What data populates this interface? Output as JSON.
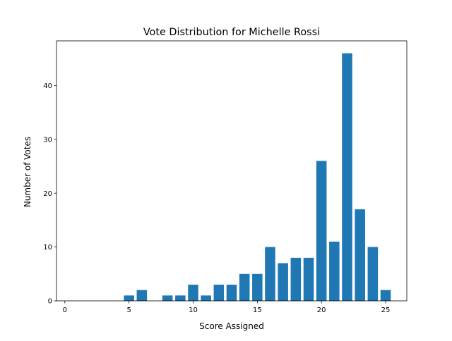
{
  "chart_data": {
    "type": "bar",
    "title": "Vote Distribution for Michelle Rossi",
    "xlabel": "Score Assigned",
    "ylabel": "Number of Votes",
    "x": [
      0,
      1,
      2,
      3,
      4,
      5,
      6,
      7,
      8,
      9,
      10,
      11,
      12,
      13,
      14,
      15,
      16,
      17,
      18,
      19,
      20,
      21,
      22,
      23,
      24,
      25
    ],
    "values": [
      0,
      0,
      0,
      0,
      0,
      1,
      2,
      0,
      1,
      1,
      3,
      1,
      3,
      3,
      5,
      5,
      10,
      7,
      8,
      8,
      26,
      11,
      46,
      17,
      10,
      2
    ],
    "xlim": [
      -0.65,
      26.65
    ],
    "ylim": [
      0,
      48.3
    ],
    "xticks": [
      0,
      5,
      10,
      15,
      20,
      25
    ],
    "yticks": [
      0,
      10,
      20,
      30,
      40
    ],
    "bar_color": "#1f77b4",
    "grid": false,
    "legend": "none"
  }
}
